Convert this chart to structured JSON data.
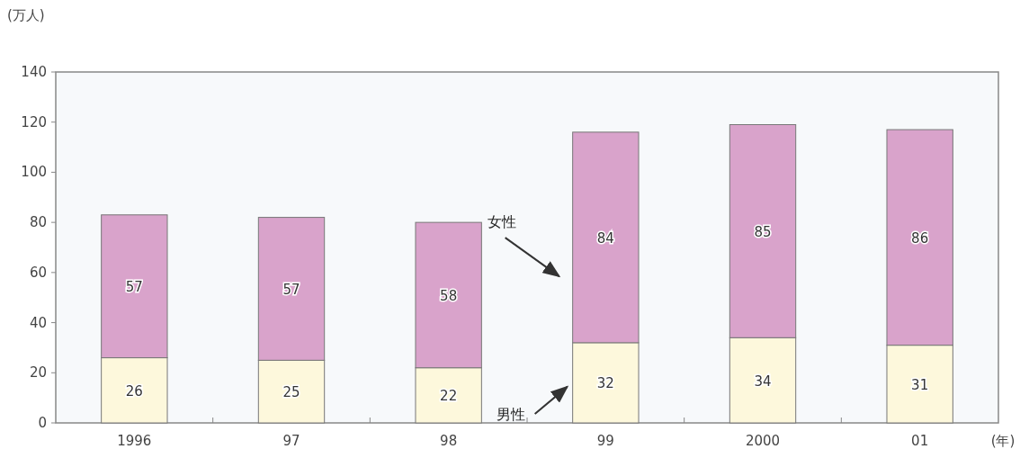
{
  "chart_data": {
    "type": "bar",
    "stacked": true,
    "ylabel": "(万人)",
    "xlabel": "(年)",
    "categories": [
      "1996",
      "97",
      "98",
      "99",
      "2000",
      "01"
    ],
    "series": [
      {
        "name": "男性",
        "color": "#fdf8dc",
        "values": [
          26,
          25,
          22,
          32,
          34,
          31
        ]
      },
      {
        "name": "女性",
        "color": "#d9a3cb",
        "values": [
          57,
          57,
          58,
          84,
          85,
          86
        ]
      }
    ],
    "ylim": [
      0,
      140
    ],
    "yticks": [
      0,
      20,
      40,
      60,
      80,
      100,
      120,
      140
    ],
    "data_labels": true,
    "grid": false,
    "legend": false
  }
}
